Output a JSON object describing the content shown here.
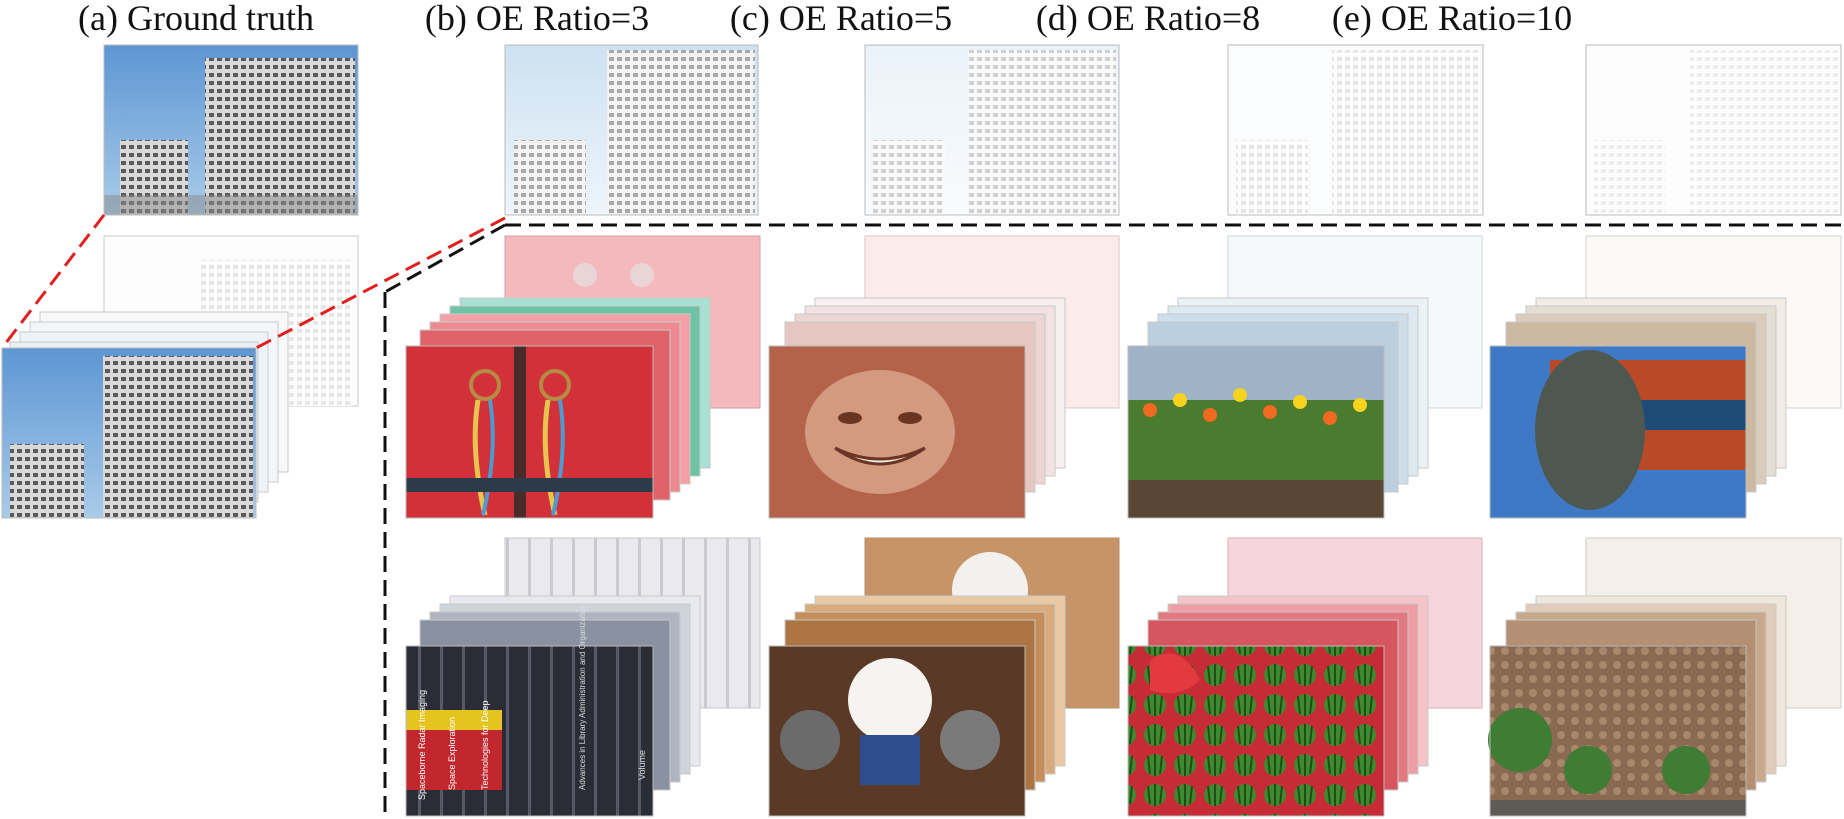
{
  "titles": {
    "a": "(a) Ground truth",
    "b": "(b) OE Ratio=3",
    "c": "(c) OE Ratio=5",
    "d": "(d) OE Ratio=8",
    "e": "(e) OE Ratio=10"
  },
  "book_spine_text": [
    "Spaceborne Radar Imaging",
    "Space Exploration",
    "Technologies for Deep",
    "Volume",
    "Advances in Library Administration and Organization"
  ],
  "colors": {
    "sky": "#6fa6d8",
    "building": "#c8c8c8",
    "door_red": "#d3313a",
    "overexposure_white": "#f6f6f6",
    "red_dashes": "#e0201e",
    "black_dashes": "#111111"
  }
}
